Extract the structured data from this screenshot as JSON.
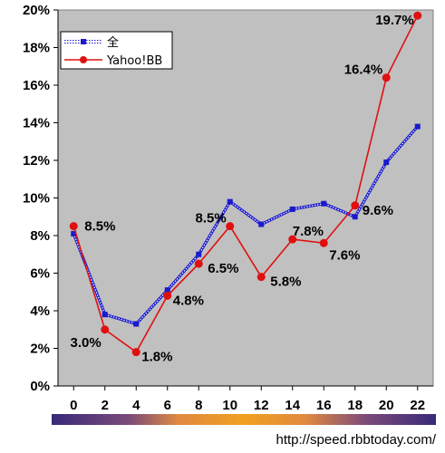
{
  "chart_data": {
    "type": "line",
    "x": [
      0,
      2,
      4,
      6,
      8,
      10,
      12,
      14,
      16,
      18,
      20,
      22
    ],
    "ylim": [
      0,
      20
    ],
    "xlim": [
      -1,
      23
    ],
    "y_ticks": [
      "0%",
      "2%",
      "4%",
      "6%",
      "8%",
      "10%",
      "12%",
      "14%",
      "16%",
      "18%",
      "20%"
    ],
    "x_ticks": [
      "0",
      "2",
      "4",
      "6",
      "8",
      "10",
      "12",
      "14",
      "16",
      "18",
      "20",
      "22"
    ],
    "grid": false,
    "legend_position": "top-left",
    "series": [
      {
        "name": "全",
        "color": "#1a1acc",
        "marker": "square",
        "line_style": "dotted-double",
        "values": [
          8.1,
          3.8,
          3.3,
          5.1,
          7.0,
          9.8,
          8.6,
          9.4,
          9.7,
          9.0,
          11.9,
          13.8
        ]
      },
      {
        "name": "Yahoo!BB",
        "color": "#e01010",
        "marker": "circle",
        "line_style": "solid",
        "values": [
          8.5,
          3.0,
          1.8,
          4.8,
          6.5,
          8.5,
          5.8,
          7.8,
          7.6,
          9.6,
          16.4,
          19.7
        ],
        "data_labels": [
          "8.5%",
          "3.0%",
          "1.8%",
          "4.8%",
          "6.5%",
          "8.5%",
          "5.8%",
          "7.8%",
          "7.6%",
          "9.6%",
          "16.4%",
          "19.7%"
        ]
      }
    ],
    "time_gradient_bar": true
  },
  "source_text": "http://speed.rbbtoday.com/"
}
